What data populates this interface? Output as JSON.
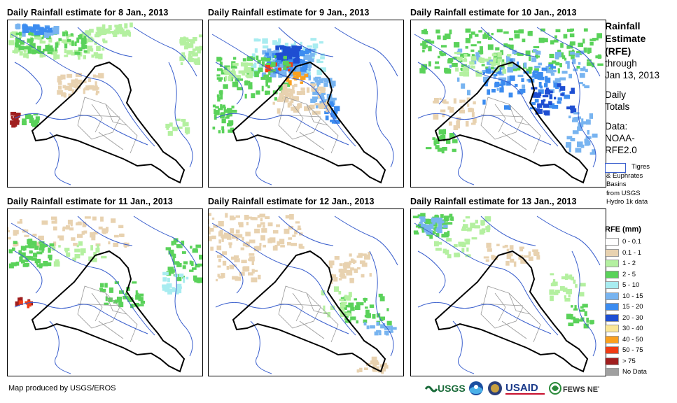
{
  "panels": [
    {
      "title": "Daily Rainfall estimate for 8 Jan., 2013"
    },
    {
      "title": "Daily Rainfall estimate for 9 Jan., 2013"
    },
    {
      "title": "Daily Rainfall estimate for 10 Jan., 2013"
    },
    {
      "title": "Daily Rainfall estimate for 11 Jan., 2013"
    },
    {
      "title": "Daily Rainfall estimate for 12 Jan., 2013"
    },
    {
      "title": "Daily Rainfall estimate for 13 Jan., 2013"
    }
  ],
  "side": {
    "title_lines": [
      "Rainfall",
      "Estimate",
      "(RFE)"
    ],
    "through": "through",
    "date": "Jan 13, 2013",
    "daily": "Daily",
    "totals": "Totals",
    "data_label": "Data:",
    "source1": "NOAA-",
    "source2": "RFE2.0"
  },
  "basin_note": [
    "Tigres",
    "& Euphrates",
    "Basins",
    "from USGS",
    "Hydro 1k data"
  ],
  "legend": {
    "title": "RFE (mm)",
    "items": [
      {
        "label": "0 - 0.1",
        "color": "#ffffff"
      },
      {
        "label": "0.1 - 1",
        "color": "#e8d2b0"
      },
      {
        "label": "1 - 2",
        "color": "#b4f0a0"
      },
      {
        "label": "2 - 5",
        "color": "#5ad25a"
      },
      {
        "label": "5 - 10",
        "color": "#a8ecf0"
      },
      {
        "label": "10 - 15",
        "color": "#78b4f0"
      },
      {
        "label": "15 - 20",
        "color": "#3c8cf0"
      },
      {
        "label": "20 - 30",
        "color": "#1e4ed2"
      },
      {
        "label": "30 - 40",
        "color": "#fae696"
      },
      {
        "label": "40 - 50",
        "color": "#faa01e"
      },
      {
        "label": "50 - 75",
        "color": "#f03c14"
      },
      {
        "label": "> 75",
        "color": "#a01e1e"
      },
      {
        "label": "No Data",
        "color": "#a0a0a0"
      }
    ]
  },
  "credit": "Map produced by USGS/EROS",
  "logos": {
    "usgs": "USGS",
    "usaid": "USAID",
    "fewsnet": "FEWS NET"
  },
  "colors": {
    "basin": "#3a5fcd",
    "border": "#000000",
    "admin": "#999999"
  }
}
